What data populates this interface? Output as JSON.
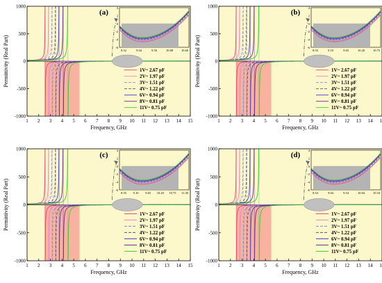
{
  "chart_data": [
    {
      "type": "line",
      "panel_label": "(a)",
      "xlabel": "Frequency, GHz",
      "ylabel": "Permittivity (Real Part)",
      "xlim": [
        1,
        15
      ],
      "ylim": [
        -1000,
        1000
      ],
      "x_ticks": [
        1,
        2,
        3,
        4,
        5,
        6,
        7,
        8,
        9,
        10,
        11,
        12,
        13,
        14,
        15
      ],
      "y_ticks": [
        -1000,
        -500,
        0,
        500,
        1000
      ],
      "shaded_band_x": [
        2.5,
        5.5
      ],
      "legend_position": "lower-right",
      "series": [
        {
          "name": "1V~ 2.67 pF",
          "resonance": 2.55,
          "color": "#e8417a",
          "dash": "solid"
        },
        {
          "name": "2V~ 1.97 pF",
          "resonance": 2.85,
          "color": "#ee82c8",
          "dash": "solid"
        },
        {
          "name": "3V~ 1.51 pF",
          "resonance": 3.15,
          "color": "#7b8ae0",
          "dash": "dashed"
        },
        {
          "name": "4V~ 1.22 pF",
          "resonance": 3.45,
          "color": "#555577",
          "dash": "dashed"
        },
        {
          "name": "6V~ 0.94 pF",
          "resonance": 3.75,
          "color": "#3c3cc8",
          "dash": "solid"
        },
        {
          "name": "8V~ 0.81 pF",
          "resonance": 4.1,
          "color": "#6a2a8a",
          "dash": "solid"
        },
        {
          "name": "11V~ 0.75 pF",
          "resonance": 4.5,
          "color": "#33cc33",
          "dash": "solid"
        }
      ],
      "inset": {
        "x_ticks": [
          "8.52",
          "9.04",
          "9.56",
          "10.08",
          "10.60"
        ],
        "y_ticks": [
          "4",
          "2",
          "0",
          "-2",
          "-4",
          "-6"
        ],
        "ylim": [
          -6,
          4
        ]
      }
    },
    {
      "type": "line",
      "panel_label": "(b)",
      "xlabel": "Frequency, GHz",
      "ylabel": "Permittivity (Real Part)",
      "xlim": [
        1,
        15
      ],
      "ylim": [
        -1000,
        1000
      ],
      "x_ticks": [
        1,
        2,
        3,
        4,
        5,
        6,
        7,
        8,
        9,
        10,
        11,
        12,
        13,
        14,
        15
      ],
      "y_ticks": [
        -1000,
        -500,
        0,
        500,
        1000
      ],
      "shaded_band_x": [
        2.5,
        5.5
      ],
      "legend_position": "lower-right",
      "series": [
        {
          "name": "1V~ 2.67 pF",
          "resonance": 2.5,
          "color": "#e8417a",
          "dash": "solid"
        },
        {
          "name": "2V~ 1.97 pF",
          "resonance": 2.8,
          "color": "#ee82c8",
          "dash": "solid"
        },
        {
          "name": "3V~ 1.51 pF",
          "resonance": 3.1,
          "color": "#7b8ae0",
          "dash": "dashed"
        },
        {
          "name": "4V~ 1.22 pF",
          "resonance": 3.4,
          "color": "#555577",
          "dash": "dashed"
        },
        {
          "name": "6V~ 0.94 pF",
          "resonance": 3.7,
          "color": "#3c3cc8",
          "dash": "solid"
        },
        {
          "name": "8V~ 0.81 pF",
          "resonance": 4.05,
          "color": "#6a2a8a",
          "dash": "solid"
        },
        {
          "name": "11V~ 0.75 pF",
          "resonance": 4.45,
          "color": "#33cc33",
          "dash": "solid"
        }
      ],
      "inset": {
        "x_ticks": [
          "8.55",
          "9.10",
          "9.65",
          "10.20",
          "10.75"
        ],
        "y_ticks": [
          "4",
          "2",
          "0",
          "-2",
          "-4",
          "-6"
        ],
        "ylim": [
          -6,
          4
        ]
      }
    },
    {
      "type": "line",
      "panel_label": "(c)",
      "xlabel": "Frequency, GHz",
      "ylabel": "Permittivity (Real Part)",
      "xlim": [
        1,
        15
      ],
      "ylim": [
        -1000,
        1000
      ],
      "x_ticks": [
        1,
        2,
        3,
        4,
        5,
        6,
        7,
        8,
        9,
        10,
        11,
        12,
        13,
        14,
        15
      ],
      "y_ticks": [
        -1000,
        -500,
        0,
        500,
        1000
      ],
      "shaded_band_x": [
        2.5,
        5.5
      ],
      "legend_position": "lower-right",
      "series": [
        {
          "name": "1V~ 2.67 pF",
          "resonance": 2.55,
          "color": "#e8417a",
          "dash": "solid"
        },
        {
          "name": "2V~ 1.97 pF",
          "resonance": 2.85,
          "color": "#ee82c8",
          "dash": "solid"
        },
        {
          "name": "3V~ 1.51 pF",
          "resonance": 3.15,
          "color": "#7b8ae0",
          "dash": "dashed"
        },
        {
          "name": "4V~ 1.22 pF",
          "resonance": 3.45,
          "color": "#555577",
          "dash": "dashed"
        },
        {
          "name": "6V~ 0.94 pF",
          "resonance": 3.75,
          "color": "#3c3cc8",
          "dash": "solid"
        },
        {
          "name": "8V~ 0.81 pF",
          "resonance": 4.1,
          "color": "#6a2a8a",
          "dash": "solid"
        },
        {
          "name": "11V~ 0.75 pF",
          "resonance": 4.5,
          "color": "#33cc33",
          "dash": "solid"
        }
      ],
      "inset": {
        "x_ticks": [
          "8.55",
          "9.10",
          "9.65",
          "10.20",
          "10.75",
          "11.30"
        ],
        "y_ticks": [
          "4",
          "2",
          "0",
          "-2",
          "-4",
          "-6"
        ],
        "ylim": [
          -6,
          4
        ]
      }
    },
    {
      "type": "line",
      "panel_label": "(d)",
      "xlabel": "Frequency, GHz",
      "ylabel": "Permittivity (Real Part)",
      "xlim": [
        1,
        15
      ],
      "ylim": [
        -1000,
        1000
      ],
      "x_ticks": [
        1,
        2,
        3,
        4,
        5,
        6,
        7,
        8,
        9,
        10,
        11,
        12,
        13,
        14,
        15
      ],
      "y_ticks": [
        -1000,
        -500,
        0,
        500,
        1000
      ],
      "shaded_band_x": [
        2.5,
        5.5
      ],
      "legend_position": "lower-right",
      "series": [
        {
          "name": "1V~ 2.67 pF",
          "resonance": 2.5,
          "color": "#e8417a",
          "dash": "solid"
        },
        {
          "name": "2V~ 1.97 pF",
          "resonance": 2.8,
          "color": "#ee82c8",
          "dash": "solid"
        },
        {
          "name": "3V~ 1.51 pF",
          "resonance": 3.1,
          "color": "#7b8ae0",
          "dash": "dashed"
        },
        {
          "name": "4V~ 1.22 pF",
          "resonance": 3.4,
          "color": "#555577",
          "dash": "dashed"
        },
        {
          "name": "6V~ 0.94 pF",
          "resonance": 3.7,
          "color": "#3c3cc8",
          "dash": "solid"
        },
        {
          "name": "8V~ 0.81 pF",
          "resonance": 4.05,
          "color": "#6a2a8a",
          "dash": "solid"
        },
        {
          "name": "11V~ 0.75 pF",
          "resonance": 4.45,
          "color": "#33cc33",
          "dash": "solid"
        }
      ],
      "inset": {
        "x_ticks": [
          "8.54",
          "9.04",
          "9.54",
          "10.04",
          "10.54"
        ],
        "y_ticks": [
          "4",
          "2",
          "0",
          "-2",
          "-4",
          "-6"
        ],
        "ylim": [
          -6,
          4
        ]
      }
    }
  ],
  "colors": {
    "plot_background": "#fdf8cc",
    "shaded_band": "#f7b3a0",
    "ellipse": "#c0c0c0",
    "inset_fill": "#b4b4b4"
  }
}
